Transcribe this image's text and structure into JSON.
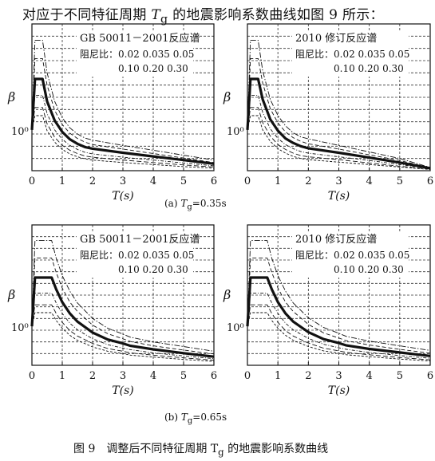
{
  "intro": {
    "prefix": "对应于不同特征周期 ",
    "var": "T",
    "sub": "g",
    "suffix": " 的地震影响系数曲线如图 9 所示："
  },
  "figure_caption": {
    "prefix": "图 9　调整后不同特征周期 ",
    "var": "T",
    "sub": "g",
    "suffix": " 的地震影响系数曲线"
  },
  "sub_captions": [
    {
      "prefix": "(a)  ",
      "var": "T",
      "sub": "g",
      "suffix": "=0.35s"
    },
    {
      "prefix": "(b)  ",
      "var": "T",
      "sub": "g",
      "suffix": "=0.65s"
    }
  ],
  "chart_data": [
    {
      "type": "line",
      "panel": "a-left",
      "legend_title": "GB 50011－2001反应谱",
      "legend_line1": "阻尼比：0.02 0.035 0.05",
      "legend_line2": "0.10 0.20 0.30",
      "xlabel": "T(s)",
      "ylabel": "β",
      "y_tick_label": "10⁰",
      "x_ticks": [
        "0",
        "1",
        "2",
        "3",
        "4",
        "5",
        "6"
      ],
      "xlim": [
        0,
        6
      ],
      "ylim": [
        0,
        3.6
      ],
      "grid": true,
      "log_y": true,
      "damping_ratios": [
        0.02,
        0.035,
        0.05,
        0.1,
        0.2,
        0.3
      ],
      "Tg": 0.35,
      "x": [
        0,
        0.1,
        0.35,
        0.5,
        0.75,
        1.0,
        1.25,
        1.5,
        1.75,
        2.0,
        3.0,
        4.0,
        5.0,
        6.0
      ],
      "series": [
        {
          "label": "0.02",
          "values": [
            1.0,
            3.2,
            3.2,
            2.4,
            1.7,
            1.3,
            1.05,
            0.9,
            0.8,
            0.75,
            0.62,
            0.5,
            0.38,
            0.26
          ]
        },
        {
          "label": "0.035",
          "values": [
            1.0,
            2.75,
            2.75,
            2.1,
            1.48,
            1.13,
            0.92,
            0.79,
            0.7,
            0.64,
            0.53,
            0.42,
            0.31,
            0.2
          ]
        },
        {
          "label": "0.05",
          "values": [
            1.0,
            2.25,
            2.25,
            1.7,
            1.23,
            0.95,
            0.77,
            0.66,
            0.58,
            0.54,
            0.44,
            0.35,
            0.26,
            0.17
          ]
        },
        {
          "label": "0.10",
          "values": [
            1.0,
            1.85,
            1.85,
            1.4,
            1.0,
            0.77,
            0.62,
            0.52,
            0.45,
            0.41,
            0.33,
            0.26,
            0.19,
            0.12
          ]
        },
        {
          "label": "0.20",
          "values": [
            1.0,
            1.55,
            1.55,
            1.15,
            0.82,
            0.62,
            0.5,
            0.42,
            0.36,
            0.33,
            0.26,
            0.2,
            0.14,
            0.09
          ]
        },
        {
          "label": "0.30",
          "values": [
            1.0,
            1.35,
            1.35,
            0.98,
            0.7,
            0.52,
            0.41,
            0.34,
            0.29,
            0.26,
            0.2,
            0.15,
            0.1,
            0.06
          ]
        }
      ]
    },
    {
      "type": "line",
      "panel": "a-right",
      "legend_title": "2010 修订反应谱",
      "legend_line1": "阻尼比：0.02 0.035 0.05",
      "legend_line2": "0.10 0.20 0.30",
      "xlabel": "T(s)",
      "ylabel": "β",
      "y_tick_label": "10⁰",
      "x_ticks": [
        "0",
        "1",
        "2",
        "3",
        "4",
        "5",
        "6"
      ],
      "xlim": [
        0,
        6
      ],
      "ylim": [
        0,
        3.6
      ],
      "grid": true,
      "log_y": true,
      "damping_ratios": [
        0.02,
        0.035,
        0.05,
        0.1,
        0.2,
        0.3
      ],
      "Tg": 0.35,
      "x": [
        0,
        0.1,
        0.35,
        0.5,
        0.75,
        1.0,
        1.25,
        1.5,
        1.75,
        2.0,
        3.0,
        4.0,
        5.0,
        6.0
      ],
      "series": [
        {
          "label": "0.02",
          "values": [
            1.0,
            3.2,
            3.2,
            2.45,
            1.75,
            1.35,
            1.1,
            0.93,
            0.83,
            0.78,
            0.62,
            0.46,
            0.3,
            0.08
          ]
        },
        {
          "label": "0.035",
          "values": [
            1.0,
            2.75,
            2.75,
            2.15,
            1.52,
            1.17,
            0.95,
            0.81,
            0.72,
            0.66,
            0.53,
            0.39,
            0.25,
            0.07
          ]
        },
        {
          "label": "0.05",
          "values": [
            1.0,
            2.25,
            2.25,
            1.75,
            1.26,
            0.98,
            0.79,
            0.68,
            0.6,
            0.55,
            0.44,
            0.32,
            0.2,
            0.06
          ]
        },
        {
          "label": "0.10",
          "values": [
            1.0,
            1.85,
            1.85,
            1.43,
            1.03,
            0.79,
            0.64,
            0.54,
            0.47,
            0.43,
            0.34,
            0.25,
            0.15,
            0.05
          ]
        },
        {
          "label": "0.20",
          "values": [
            1.0,
            1.55,
            1.55,
            1.18,
            0.85,
            0.64,
            0.52,
            0.43,
            0.37,
            0.34,
            0.27,
            0.19,
            0.11,
            0.04
          ]
        },
        {
          "label": "0.30",
          "values": [
            1.0,
            1.35,
            1.35,
            1.0,
            0.72,
            0.54,
            0.43,
            0.35,
            0.3,
            0.27,
            0.21,
            0.15,
            0.09,
            0.03
          ]
        }
      ]
    },
    {
      "type": "line",
      "panel": "b-left",
      "legend_title": "GB 50011－2001反应谱",
      "legend_line1": "阻尼比：0.02 0.035 0.05",
      "legend_line2": "0.10 0.20 0.30",
      "xlabel": "T(s)",
      "ylabel": "β",
      "y_tick_label": "10⁰",
      "x_ticks": [
        "0",
        "1",
        "2",
        "3",
        "4",
        "5",
        "6"
      ],
      "xlim": [
        0,
        6
      ],
      "ylim": [
        0,
        3.6
      ],
      "grid": true,
      "log_y": true,
      "damping_ratios": [
        0.02,
        0.035,
        0.05,
        0.1,
        0.2,
        0.3
      ],
      "Tg": 0.65,
      "x": [
        0,
        0.1,
        0.65,
        0.8,
        1.0,
        1.25,
        1.5,
        2.0,
        2.5,
        3.0,
        3.25,
        4.0,
        5.0,
        6.0
      ],
      "series": [
        {
          "label": "0.02",
          "values": [
            1.0,
            3.2,
            3.2,
            2.75,
            2.3,
            1.9,
            1.6,
            1.2,
            0.95,
            0.8,
            0.72,
            0.6,
            0.48,
            0.36
          ]
        },
        {
          "label": "0.035",
          "values": [
            1.0,
            2.75,
            2.75,
            2.38,
            1.98,
            1.62,
            1.38,
            1.03,
            0.81,
            0.68,
            0.61,
            0.5,
            0.39,
            0.29
          ]
        },
        {
          "label": "0.05",
          "values": [
            1.0,
            2.25,
            2.25,
            1.95,
            1.62,
            1.33,
            1.12,
            0.84,
            0.66,
            0.56,
            0.5,
            0.41,
            0.31,
            0.22
          ]
        },
        {
          "label": "0.10",
          "values": [
            1.0,
            1.85,
            1.85,
            1.6,
            1.33,
            1.08,
            0.91,
            0.68,
            0.53,
            0.44,
            0.4,
            0.32,
            0.24,
            0.17
          ]
        },
        {
          "label": "0.20",
          "values": [
            1.0,
            1.55,
            1.55,
            1.33,
            1.1,
            0.89,
            0.75,
            0.56,
            0.43,
            0.36,
            0.32,
            0.26,
            0.19,
            0.13
          ]
        },
        {
          "label": "0.30",
          "values": [
            1.0,
            1.35,
            1.35,
            1.15,
            0.95,
            0.77,
            0.64,
            0.47,
            0.36,
            0.3,
            0.26,
            0.21,
            0.15,
            0.1
          ]
        }
      ]
    },
    {
      "type": "line",
      "panel": "b-right",
      "legend_title": "2010 修订反应谱",
      "legend_line1": "阻尼比：0.02 0.035 0.05",
      "legend_line2": "0.10 0.20 0.30",
      "xlabel": "T(s)",
      "ylabel": "β",
      "y_tick_label": "10⁰",
      "x_ticks": [
        "0",
        "1",
        "2",
        "3",
        "4",
        "5",
        "6"
      ],
      "xlim": [
        0,
        6
      ],
      "ylim": [
        0,
        3.6
      ],
      "grid": true,
      "log_y": true,
      "damping_ratios": [
        0.02,
        0.035,
        0.05,
        0.1,
        0.2,
        0.3
      ],
      "Tg": 0.65,
      "x": [
        0,
        0.1,
        0.65,
        0.8,
        1.0,
        1.25,
        1.5,
        2.0,
        2.5,
        3.0,
        3.25,
        4.0,
        5.0,
        6.0
      ],
      "series": [
        {
          "label": "0.02",
          "values": [
            1.0,
            3.2,
            3.2,
            2.75,
            2.3,
            1.9,
            1.6,
            1.22,
            0.97,
            0.82,
            0.74,
            0.62,
            0.5,
            0.38
          ]
        },
        {
          "label": "0.035",
          "values": [
            1.0,
            2.75,
            2.75,
            2.38,
            1.98,
            1.62,
            1.38,
            1.05,
            0.83,
            0.7,
            0.63,
            0.52,
            0.41,
            0.31
          ]
        },
        {
          "label": "0.05",
          "values": [
            1.0,
            2.25,
            2.25,
            1.95,
            1.62,
            1.33,
            1.12,
            0.85,
            0.67,
            0.57,
            0.51,
            0.42,
            0.33,
            0.24
          ]
        },
        {
          "label": "0.10",
          "values": [
            1.0,
            1.85,
            1.85,
            1.6,
            1.33,
            1.08,
            0.91,
            0.69,
            0.54,
            0.45,
            0.41,
            0.33,
            0.25,
            0.18
          ]
        },
        {
          "label": "0.20",
          "values": [
            1.0,
            1.55,
            1.55,
            1.33,
            1.1,
            0.89,
            0.75,
            0.57,
            0.44,
            0.37,
            0.33,
            0.27,
            0.2,
            0.14
          ]
        },
        {
          "label": "0.30",
          "values": [
            1.0,
            1.35,
            1.35,
            1.15,
            0.95,
            0.77,
            0.64,
            0.48,
            0.37,
            0.31,
            0.27,
            0.22,
            0.16,
            0.11
          ]
        }
      ]
    }
  ]
}
